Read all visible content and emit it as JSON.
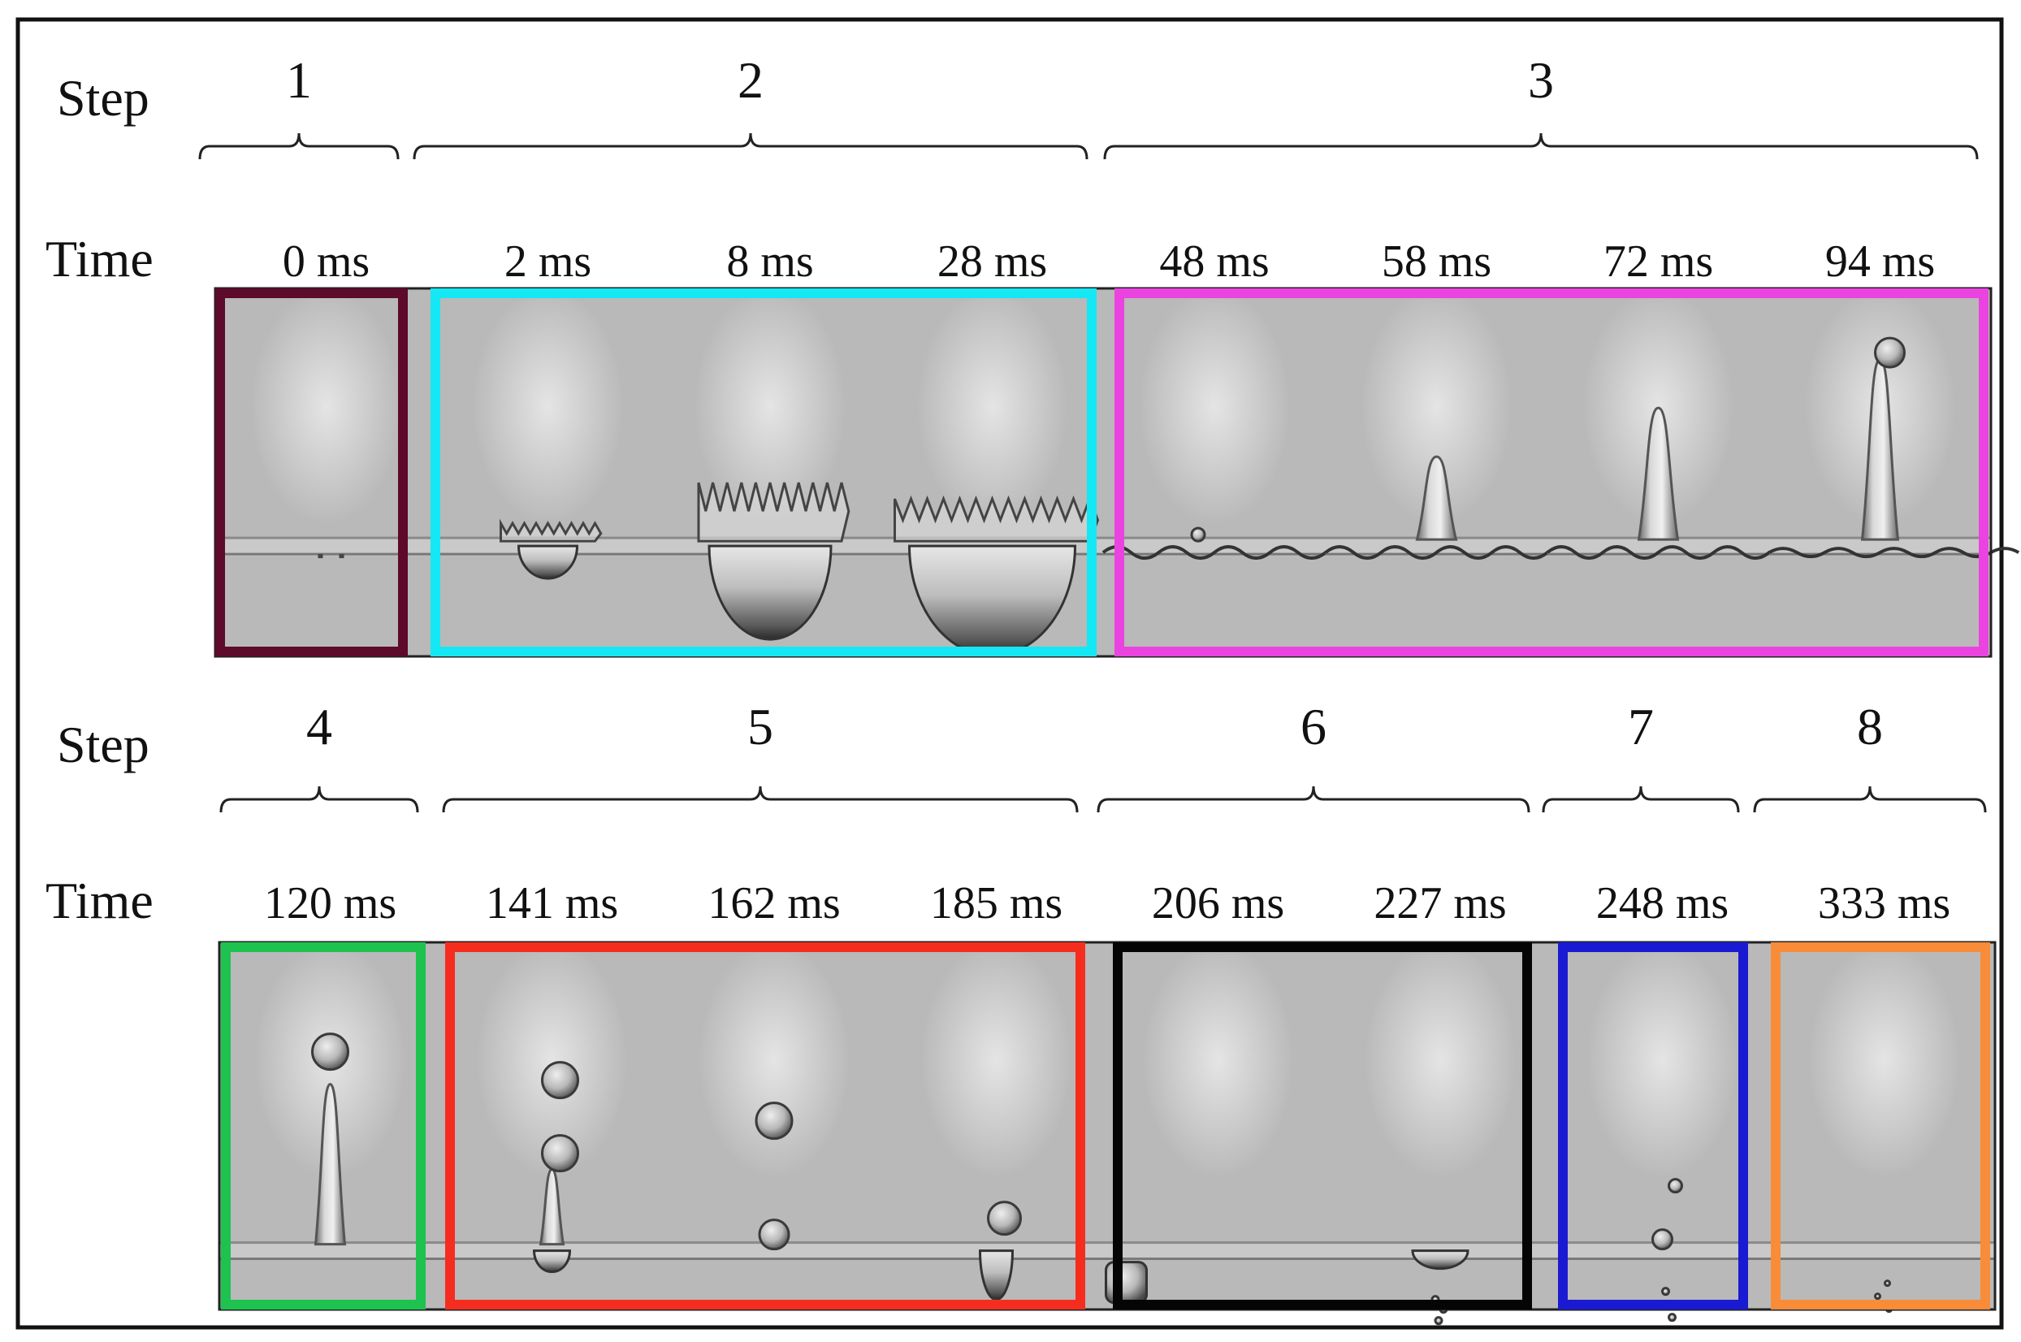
{
  "labels": {
    "step": "Step",
    "time": "Time"
  },
  "rows": [
    {
      "steps": [
        {
          "label": "1",
          "color": "#5e0a2a"
        },
        {
          "label": "2",
          "color": "#14e8f4"
        },
        {
          "label": "3",
          "color": "#ea43e0"
        }
      ],
      "frames": [
        {
          "time": "0 ms",
          "step": 0,
          "scene": "drop-contact"
        },
        {
          "time": "2 ms",
          "step": 1,
          "scene": "crown-small"
        },
        {
          "time": "8 ms",
          "step": 1,
          "scene": "crown-medium"
        },
        {
          "time": "28 ms",
          "step": 1,
          "scene": "crown-large"
        },
        {
          "time": "48 ms",
          "step": 2,
          "scene": "collapse"
        },
        {
          "time": "58 ms",
          "step": 2,
          "scene": "jet-short"
        },
        {
          "time": "72 ms",
          "step": 2,
          "scene": "jet-medium"
        },
        {
          "time": "94 ms",
          "step": 2,
          "scene": "jet-tall"
        }
      ]
    },
    {
      "steps": [
        {
          "label": "4",
          "color": "#1ec24e"
        },
        {
          "label": "5",
          "color": "#f52d1e"
        },
        {
          "label": "6",
          "color": "#050505"
        },
        {
          "label": "7",
          "color": "#1a1ad2"
        },
        {
          "label": "8",
          "color": "#f88c38"
        }
      ],
      "frames": [
        {
          "time": "120 ms",
          "step": 0,
          "scene": "jet-pinch"
        },
        {
          "time": "141 ms",
          "step": 1,
          "scene": "two-drops"
        },
        {
          "time": "162 ms",
          "step": 1,
          "scene": "drop-falling"
        },
        {
          "time": "185 ms",
          "step": 1,
          "scene": "drop-landing"
        },
        {
          "time": "206 ms",
          "step": 2,
          "scene": "sub-bubble"
        },
        {
          "time": "227 ms",
          "step": 2,
          "scene": "small-cavity"
        },
        {
          "time": "248 ms",
          "step": 3,
          "scene": "tiny-drop"
        },
        {
          "time": "333 ms",
          "step": 4,
          "scene": "calm"
        }
      ]
    }
  ]
}
